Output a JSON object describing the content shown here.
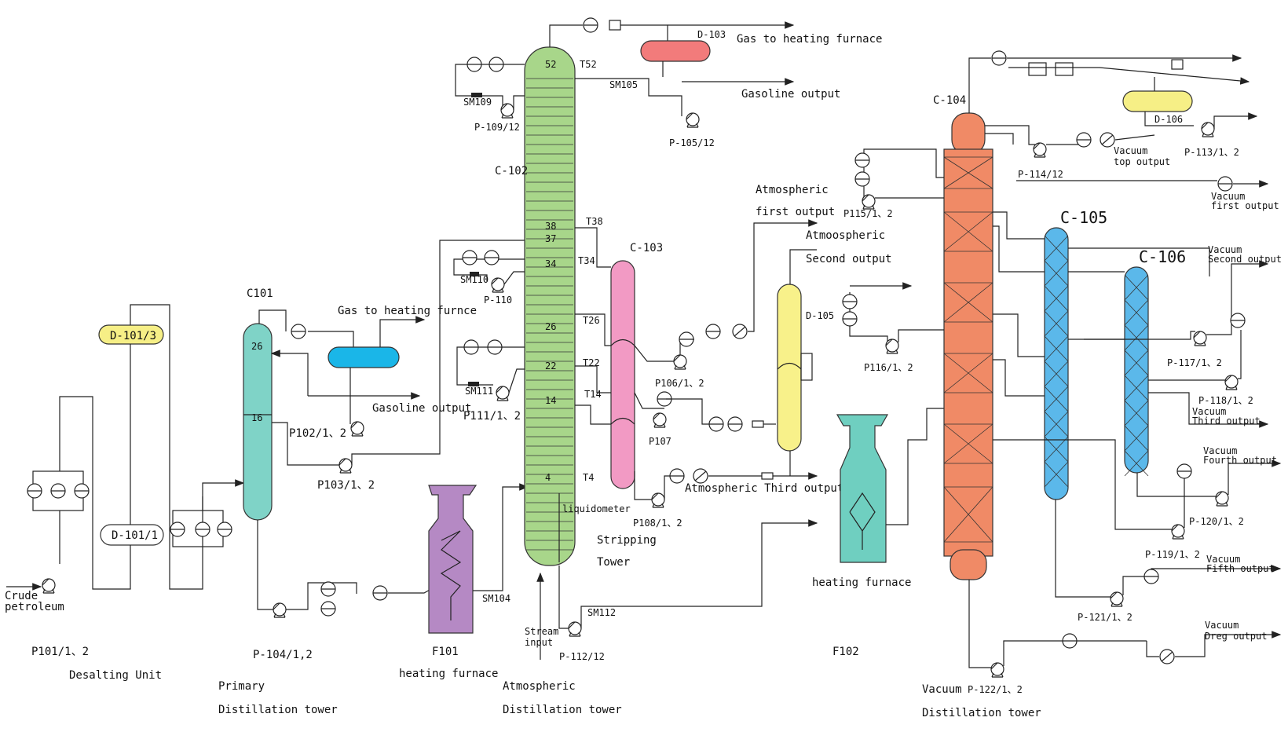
{
  "colors": {
    "d101_3": "#f6ef86",
    "c101": "#7fd3c7",
    "gas_drum_primary": "#1ab6e8",
    "c102": "#a8d68a",
    "d103": "#f27b7b",
    "c103": "#f29ac4",
    "f101": "#b589c4",
    "d105": "#f8f18a",
    "f102": "#6fcfc0",
    "c104": "#f08a66",
    "c105": "#5bb8ea",
    "c106": "#5bb8ea",
    "d106": "#f6ef86"
  },
  "labels": {
    "d101_3": "D-101/3",
    "d101_1": "D-101/1",
    "crude": "Crude",
    "petroleum": "petroleum",
    "p101": "P101/1、2",
    "desalting": "Desalting Unit",
    "c101": "C101",
    "tray26_c101": "26",
    "tray16_c101": "16",
    "gas_heating_furnace_1": "Gas to heating furnce",
    "gasoline_output_1": "Gasoline output",
    "p102": "P102/1、2",
    "p103": "P103/1、2",
    "p104": "P-104/1,2",
    "primary_1": "Primary",
    "primary_2": "Distillation tower",
    "f101": "F101",
    "f101_name": "heating furnace",
    "sm104": "SM104",
    "c102": "C-102",
    "tray52": "52",
    "tray38": "38",
    "tray37": "37",
    "tray34": "34",
    "tray26": "26",
    "tray22": "22",
    "tray14": "14",
    "tray4": "4",
    "t52": "T52",
    "t38": "T38",
    "t34": "T34",
    "t26": "T26",
    "t22": "T22",
    "t14": "T14",
    "t4": "T4",
    "sm109": "SM109",
    "p109": "P-109/12",
    "sm105": "SM105",
    "d103": "D-103",
    "gas_heating_furnace_2": "Gas to heating furnace",
    "gasoline_output_2": "Gasoline output",
    "p105": "P-105/12",
    "sm110": "SM110",
    "p110": "P-110",
    "sm111": "SM111",
    "p111": "P111/1、2",
    "liquidometer": "liquidometer",
    "stream_1": "Stream",
    "stream_2": "input",
    "sm112": "SM112",
    "p112": "P-112/12",
    "atm_1": "Atmospheric",
    "atm_2": "Distillation tower",
    "c103": "C-103",
    "stripping_1": "Stripping",
    "stripping_2": "Tower",
    "p106": "P106/1、2",
    "p107": "P107",
    "p108": "P108/1、2",
    "atm_first_1": "Atmospheric",
    "atm_first_2": "first output",
    "atm_second_1": "Atmoospheric",
    "atm_second_2": "Second output",
    "atm_third": "Atmospheric Third output",
    "d105": "D-105",
    "f102_name": "heating furnace",
    "f102": "F102",
    "c104": "C-104",
    "p115": "P115/1、2",
    "p116": "P116/1、2",
    "p114": "P-114/12",
    "d106": "D-106",
    "vac_top_1": "Vacuum",
    "vac_top_2": "top output",
    "p113": "P-113/1、2",
    "c105": "C-105",
    "c106": "C-106",
    "vac_first_1": "Vacuum",
    "vac_first_2": "first output",
    "vac_second_1": "Vacuum",
    "vac_second_2": "Second output",
    "p117": "P-117/1、2",
    "p118": "P-118/1、2",
    "vac_third_1": "Vacuum",
    "vac_third_2": "Third output",
    "vac_fourth_1": "Vacuum",
    "vac_fourth_2": "Fourth output",
    "p120": "P-120/1、2",
    "p119": "P-119/1、2",
    "vac_fifth_1": "Vacuum",
    "vac_fifth_2": "Fifth output",
    "p121": "P-121/1、2",
    "vac_dreg_1": "Vacuum",
    "vac_dreg_2": "Dreg output",
    "p122": "P-122/1、2",
    "vacuum_1": "Vacuum",
    "vacuum_2": "Distillation tower"
  }
}
